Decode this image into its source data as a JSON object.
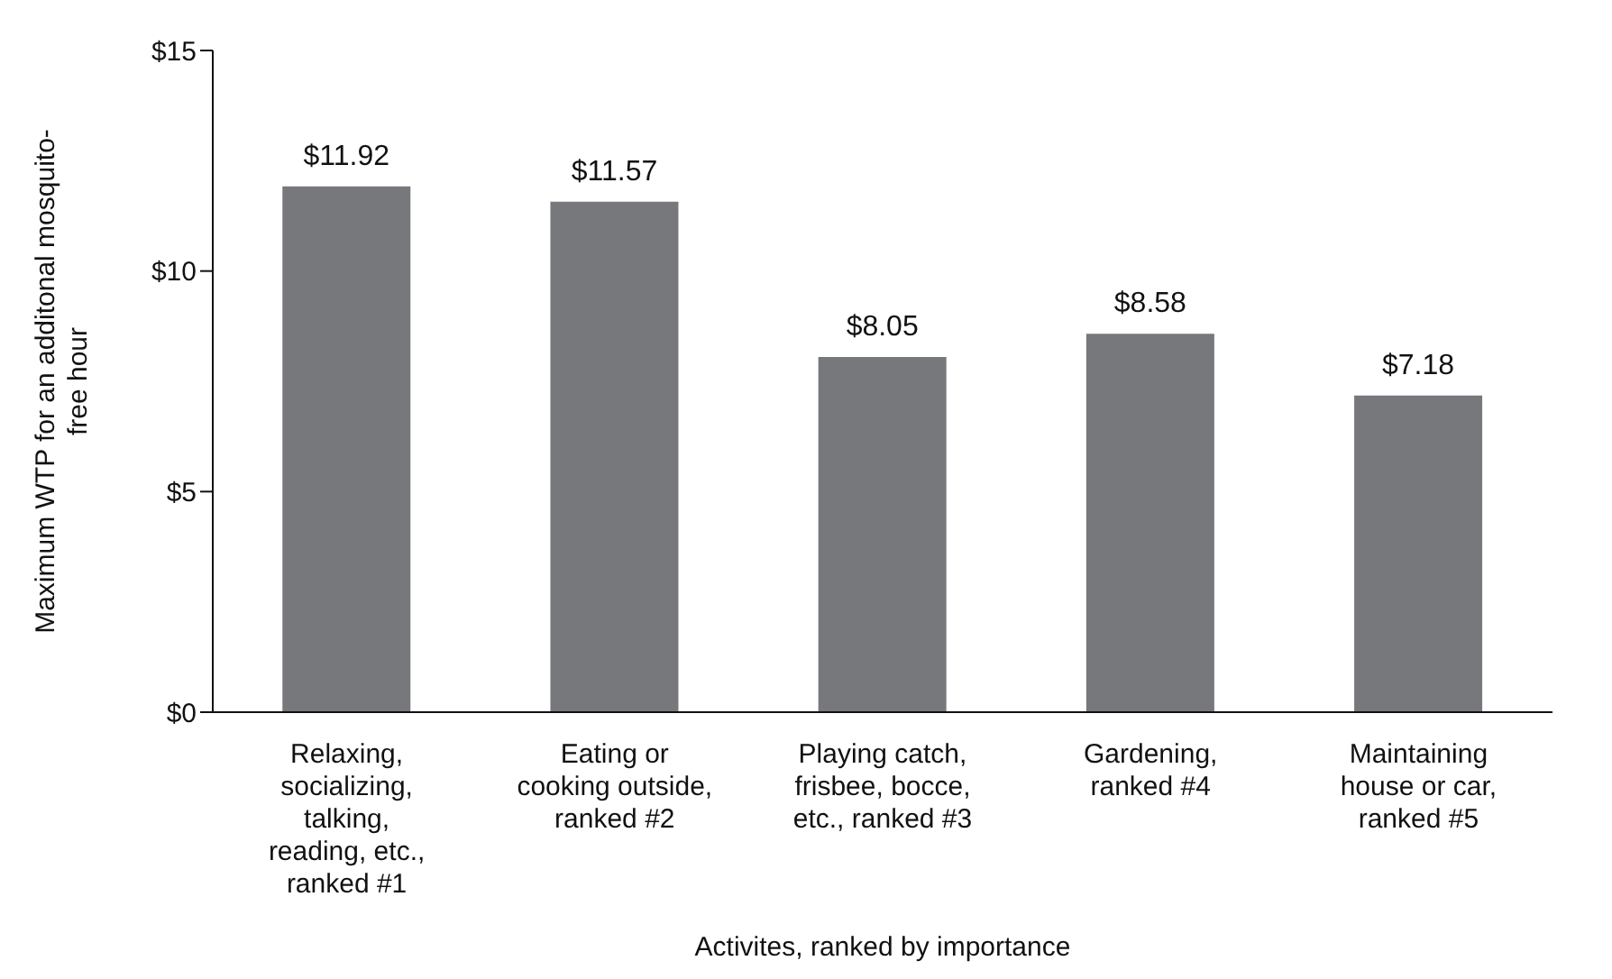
{
  "chart_data": {
    "type": "bar",
    "xlabel": "Activites, ranked by importance",
    "ylabel": "Maximum WTP for an additonal mosquito-free hour",
    "categories": [
      "Relaxing, socializing, talking, reading, etc., ranked #1",
      "Eating or cooking outside, ranked #2",
      "Playing catch, frisbee, bocce, etc., ranked #3",
      "Gardening, ranked #4",
      "Maintaining house or car, ranked #5"
    ],
    "series": [
      {
        "color": "#77787b",
        "values": [
          11.92,
          11.57,
          8.05,
          8.58,
          7.18
        ],
        "value_labels": [
          "$11.92",
          "$11.57",
          "$8.05",
          "$8.58",
          "$7.18"
        ]
      }
    ],
    "ylim": [
      0,
      15
    ],
    "yticks": [
      {
        "value": 0,
        "label": "$0"
      },
      {
        "value": 5,
        "label": "$5"
      },
      {
        "value": 10,
        "label": "$10"
      },
      {
        "value": 15,
        "label": "$15"
      }
    ],
    "grid": false
  }
}
